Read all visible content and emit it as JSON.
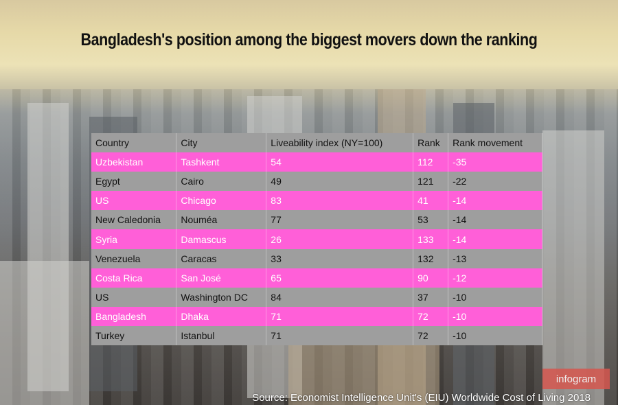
{
  "title": "Bangladesh's position among the biggest movers down the ranking",
  "columns": [
    "Country",
    "City",
    "Liveability index (NY=100)",
    "Rank",
    "Rank movement"
  ],
  "rows": [
    {
      "country": "Uzbekistan",
      "city": "Tashkent",
      "index": "54",
      "rank": "112",
      "movement": "-35",
      "highlight": true
    },
    {
      "country": "Egypt",
      "city": "Cairo",
      "index": "49",
      "rank": "121",
      "movement": "-22",
      "highlight": false
    },
    {
      "country": "US",
      "city": "Chicago",
      "index": "83",
      "rank": "41",
      "movement": "-14",
      "highlight": true
    },
    {
      "country": "New Caledonia",
      "city": "Nouméa",
      "index": "77",
      "rank": "53",
      "movement": "-14",
      "highlight": false
    },
    {
      "country": "Syria",
      "city": "Damascus",
      "index": "26",
      "rank": "133",
      "movement": "-14",
      "highlight": true
    },
    {
      "country": "Venezuela",
      "city": "Caracas",
      "index": "33",
      "rank": "132",
      "movement": "-13",
      "highlight": false
    },
    {
      "country": "Costa Rica",
      "city": "San José",
      "index": "65",
      "rank": "90",
      "movement": "-12",
      "highlight": true
    },
    {
      "country": "US",
      "city": "Washington DC",
      "index": "84",
      "rank": "37",
      "movement": "-10",
      "highlight": false
    },
    {
      "country": "Bangladesh",
      "city": "Dhaka",
      "index": "71",
      "rank": "72",
      "movement": "-10",
      "highlight": true
    },
    {
      "country": "Turkey",
      "city": "Istanbul",
      "index": "71",
      "rank": "72",
      "movement": "-10",
      "highlight": false
    }
  ],
  "source": "Source: Economist Intelligence Unit's (EIU) Worldwide Cost of Living 2018",
  "brand": "infogram",
  "colors": {
    "highlight": "#ff5fd8",
    "row": "#9e9e9e"
  }
}
